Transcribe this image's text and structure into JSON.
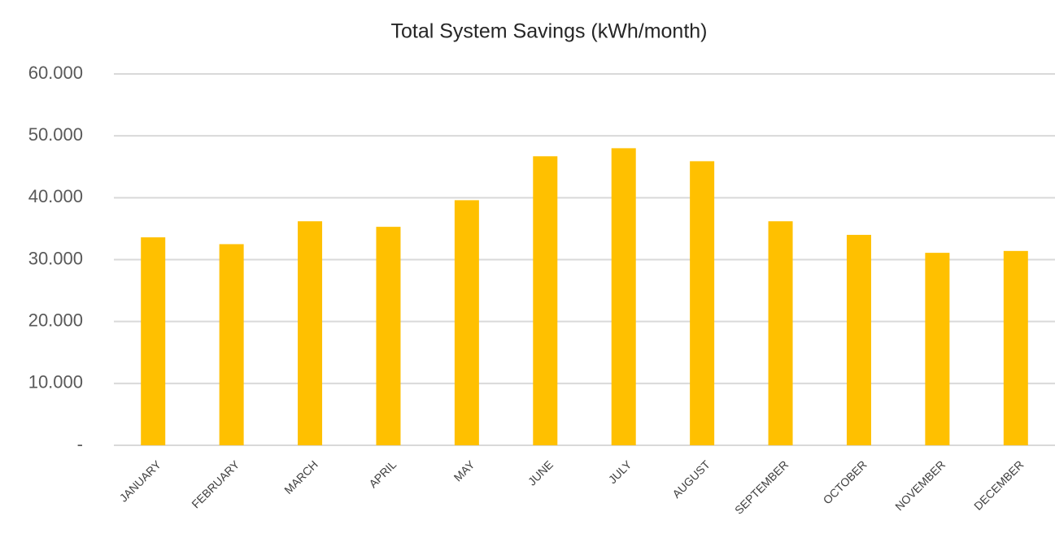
{
  "chart_data": {
    "type": "bar",
    "title": "Total System Savings (kWh/month)",
    "categories": [
      "JANUARY",
      "FEBRUARY",
      "MARCH",
      "APRIL",
      "MAY",
      "JUNE",
      "JULY",
      "AUGUST",
      "SEPTEMBER",
      "OCTOBER",
      "NOVEMBER",
      "DECEMBER"
    ],
    "values": [
      33600,
      32500,
      36200,
      35300,
      39600,
      46700,
      48000,
      45900,
      36200,
      34000,
      31100,
      31400
    ],
    "color": "#ffc000",
    "ylim": [
      0,
      60000
    ],
    "yticks": [
      {
        "value": 0,
        "label": "-"
      },
      {
        "value": 10000,
        "label": "10.000"
      },
      {
        "value": 20000,
        "label": "20.000"
      },
      {
        "value": 30000,
        "label": "30.000"
      },
      {
        "value": 40000,
        "label": "40.000"
      },
      {
        "value": 50000,
        "label": "50.000"
      },
      {
        "value": 60000,
        "label": "60.000"
      }
    ],
    "grid": true
  }
}
